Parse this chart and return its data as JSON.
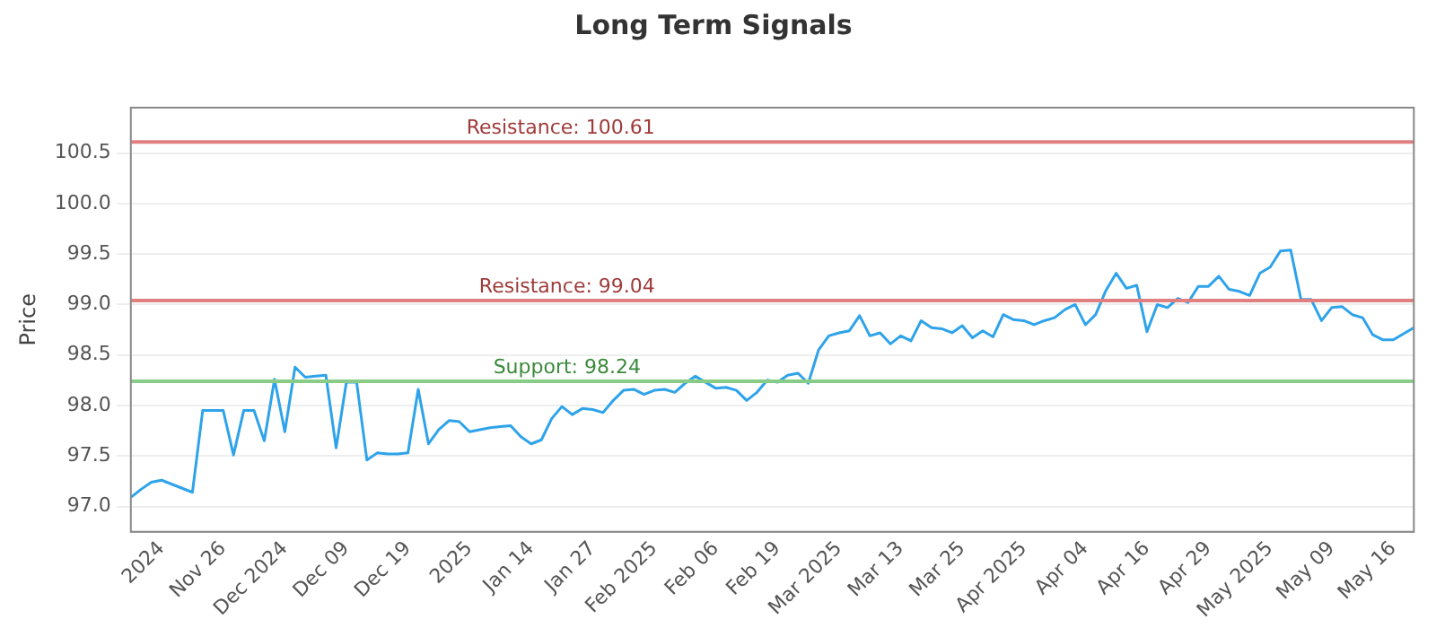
{
  "chart_data": {
    "type": "line",
    "title": "Long Term Signals",
    "ylabel": "Price",
    "categories": [
      null,
      null,
      null,
      "2024",
      null,
      null,
      null,
      null,
      null,
      "Nov 26",
      null,
      null,
      null,
      null,
      null,
      "Dec 2024",
      null,
      null,
      null,
      null,
      null,
      "Dec 09",
      null,
      null,
      null,
      null,
      null,
      "Dec 19",
      null,
      null,
      null,
      null,
      null,
      "2025",
      null,
      null,
      null,
      null,
      null,
      "Jan 14",
      null,
      null,
      null,
      null,
      null,
      "Jan 27",
      null,
      null,
      null,
      null,
      null,
      "Feb 2025",
      null,
      null,
      null,
      null,
      null,
      "Feb 06",
      null,
      null,
      null,
      null,
      null,
      "Feb 19",
      null,
      null,
      null,
      null,
      null,
      "Mar 2025",
      null,
      null,
      null,
      null,
      null,
      "Mar 13",
      null,
      null,
      null,
      null,
      null,
      "Mar 25",
      null,
      null,
      null,
      null,
      null,
      "Apr 2025",
      null,
      null,
      null,
      null,
      null,
      "Apr 04",
      null,
      null,
      null,
      null,
      null,
      "Apr 16",
      null,
      null,
      null,
      null,
      null,
      "Apr 29",
      null,
      null,
      null,
      null,
      null,
      "May 2025",
      null,
      null,
      null,
      null,
      null,
      "May 09",
      null,
      null,
      null,
      null,
      null,
      "May 16",
      null,
      null
    ],
    "series": [
      {
        "color": "#2ea3ea",
        "values": [
          97.09,
          97.17,
          97.24,
          97.26,
          97.22,
          97.18,
          97.14,
          97.95,
          97.95,
          97.95,
          97.51,
          97.95,
          97.95,
          97.65,
          98.26,
          97.74,
          98.38,
          98.28,
          98.29,
          98.3,
          97.58,
          98.23,
          98.23,
          97.46,
          97.53,
          97.52,
          97.52,
          97.53,
          98.16,
          97.62,
          97.76,
          97.85,
          97.84,
          97.74,
          97.76,
          97.78,
          97.79,
          97.8,
          97.69,
          97.62,
          97.66,
          97.87,
          97.99,
          97.91,
          97.97,
          97.96,
          97.93,
          98.05,
          98.15,
          98.16,
          98.11,
          98.15,
          98.16,
          98.13,
          98.22,
          98.29,
          98.23,
          98.17,
          98.18,
          98.15,
          98.05,
          98.13,
          98.25,
          98.23,
          98.3,
          98.32,
          98.22,
          98.55,
          98.69,
          98.72,
          98.74,
          98.89,
          98.69,
          98.72,
          98.61,
          98.69,
          98.64,
          98.84,
          98.77,
          98.76,
          98.72,
          98.79,
          98.67,
          98.74,
          98.68,
          98.9,
          98.85,
          98.84,
          98.8,
          98.84,
          98.87,
          98.95,
          99.0,
          98.8,
          98.9,
          99.14,
          99.31,
          99.16,
          99.19,
          98.73,
          99.0,
          98.97,
          99.06,
          99.02,
          99.18,
          99.18,
          99.28,
          99.15,
          99.13,
          99.09,
          99.31,
          99.37,
          99.53,
          99.54,
          99.05,
          99.05,
          98.84,
          98.97,
          98.98,
          98.9,
          98.87,
          98.7,
          98.65,
          98.65,
          98.71,
          98.77
        ]
      }
    ],
    "ylim": [
      96.75,
      100.95
    ],
    "yticks": [
      {
        "value": 97,
        "label": "97.0"
      },
      {
        "value": 97.5,
        "label": "97.5"
      },
      {
        "value": 98,
        "label": "98.0"
      },
      {
        "value": 98.5,
        "label": "98.5"
      },
      {
        "value": 99,
        "label": "99.0"
      },
      {
        "value": 99.5,
        "label": "99.5"
      },
      {
        "value": 100,
        "label": "100.0"
      },
      {
        "value": 100.5,
        "label": "100.5"
      }
    ],
    "grid": "y",
    "marker": "none",
    "line_style": "solid",
    "legend": false,
    "ref_lines": [
      {
        "axis": "y",
        "value": 100.61,
        "label": "Resistance: 100.61",
        "color": "#e08080"
      },
      {
        "axis": "y",
        "value": 99.04,
        "label": "Resistance: 99.04",
        "color": "#e08080"
      },
      {
        "axis": "y",
        "value": 98.24,
        "label": "Support: 98.24",
        "color": "#88cc88"
      }
    ]
  }
}
